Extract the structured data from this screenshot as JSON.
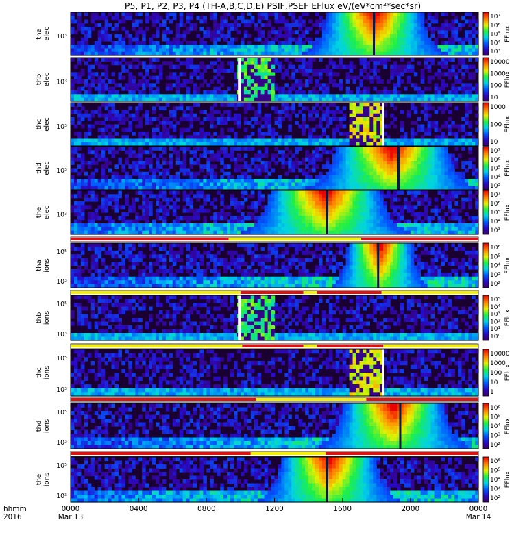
{
  "title": "P5, P1, P2, P3, P4 (TH-A,B,C,D,E) PSIF,PSEF EFlux eV/(eV*cm²*sec*sr)",
  "chart_data": {
    "type": "heatmap",
    "x_axis": {
      "label_line1": "hhmm",
      "label_line2": "2016",
      "tick_labels": [
        "0000",
        "0400",
        "0800",
        "1200",
        "1600",
        "2000",
        "0000"
      ],
      "date_labels": [
        {
          "at_hour": 0,
          "text": "Mar 13"
        },
        {
          "at_hour": 24,
          "text": "Mar 14"
        }
      ],
      "range_hours": [
        0,
        24
      ]
    },
    "panels": [
      {
        "name": "tha-elec",
        "ylabel": [
          "tha",
          "elec"
        ],
        "y_ticks": [
          "10³"
        ],
        "colorbar": {
          "label": "EFlux",
          "ticks": [
            "10³",
            "10⁴",
            "10⁵",
            "10⁶",
            "10⁷"
          ]
        },
        "peak_hour": 17.9,
        "peak_width": 3.4,
        "gap_hour": 17.85,
        "bar": null
      },
      {
        "name": "thb-elec",
        "ylabel": [
          "thb",
          "elec"
        ],
        "y_ticks": [
          "10³"
        ],
        "colorbar": {
          "label": "EFlux",
          "ticks": [
            "10",
            "100",
            "1000",
            "10000"
          ]
        },
        "burst": [
          9.9,
          12.0
        ],
        "gap_hour": 9.95,
        "bar": null
      },
      {
        "name": "thc-elec",
        "ylabel": [
          "thc",
          "elec"
        ],
        "y_ticks": [
          "10³"
        ],
        "colorbar": {
          "label": "EFlux",
          "ticks": [
            "10",
            "100",
            "1000"
          ]
        },
        "burst": [
          16.5,
          18.4
        ],
        "gap_hour": 18.4,
        "bar": null
      },
      {
        "name": "thd-elec",
        "ylabel": [
          "thd",
          "elec"
        ],
        "y_ticks": [
          "10³"
        ],
        "colorbar": {
          "label": "EFlux",
          "ticks": [
            "10³",
            "10⁴",
            "10⁵",
            "10⁶",
            "10⁷"
          ]
        },
        "peak_hour": 18.9,
        "peak_width": 4.0,
        "gap_hour": 19.3,
        "bar": null
      },
      {
        "name": "the-elec",
        "ylabel": [
          "the",
          "elec"
        ],
        "y_ticks": [
          "10³"
        ],
        "colorbar": {
          "label": "EFlux",
          "ticks": [
            "10³",
            "10⁴",
            "10⁵",
            "10⁶",
            "10⁷"
          ]
        },
        "peak_hour": 15.0,
        "peak_width": 4.0,
        "gap_hour": 15.1,
        "bar": [
          {
            "from": 0,
            "to": 9.3,
            "color": "red"
          },
          {
            "from": 9.3,
            "to": 17.1,
            "color": "yellow"
          },
          {
            "from": 17.1,
            "to": 24,
            "color": "red"
          }
        ]
      },
      {
        "name": "tha-ions",
        "ylabel": [
          "tha",
          "ions"
        ],
        "y_ticks": [
          "10³",
          "10⁵"
        ],
        "colorbar": {
          "label": "EFlux",
          "ticks": [
            "10²",
            "10³",
            "10⁴",
            "10⁵",
            "10⁶"
          ]
        },
        "peak_hour": 18.2,
        "peak_width": 2.3,
        "gap_hour": 18.1,
        "bar": [
          {
            "from": 0,
            "to": 10.0,
            "color": "yellow"
          },
          {
            "from": 10.0,
            "to": 13.7,
            "color": "red"
          },
          {
            "from": 13.7,
            "to": 14.5,
            "color": "yellow"
          },
          {
            "from": 14.5,
            "to": 18.3,
            "color": "red"
          },
          {
            "from": 18.3,
            "to": 24,
            "color": "yellow"
          }
        ]
      },
      {
        "name": "thb-ions",
        "ylabel": [
          "thb",
          "ions"
        ],
        "y_ticks": [
          "10³",
          "10⁵"
        ],
        "colorbar": {
          "label": "EFlux",
          "ticks": [
            "10⁰",
            "10¹",
            "10²",
            "10³",
            "10⁴",
            "10⁵"
          ]
        },
        "burst": [
          9.9,
          12.0
        ],
        "gap_hour": 9.95,
        "bar": [
          {
            "from": 0,
            "to": 10.1,
            "color": "yellow"
          },
          {
            "from": 10.1,
            "to": 13.7,
            "color": "red"
          },
          {
            "from": 13.7,
            "to": 14.5,
            "color": "yellow"
          },
          {
            "from": 14.5,
            "to": 18.4,
            "color": "red"
          },
          {
            "from": 18.4,
            "to": 24,
            "color": "yellow"
          }
        ]
      },
      {
        "name": "thc-ions",
        "ylabel": [
          "thc",
          "ions"
        ],
        "y_ticks": [
          "10³",
          "10⁵"
        ],
        "colorbar": {
          "label": "EFlux",
          "ticks": [
            "1",
            "10",
            "100",
            "1000",
            "10000"
          ]
        },
        "burst": [
          16.5,
          18.4
        ],
        "gap_hour": 18.4,
        "bar": [
          {
            "from": 0,
            "to": 10.9,
            "color": "red"
          },
          {
            "from": 10.9,
            "to": 17.4,
            "color": "yellow"
          },
          {
            "from": 17.4,
            "to": 24,
            "color": "red"
          }
        ]
      },
      {
        "name": "thd-ions",
        "ylabel": [
          "thd",
          "ions"
        ],
        "y_ticks": [
          "10³",
          "10⁵"
        ],
        "colorbar": {
          "label": "EFlux",
          "ticks": [
            "10²",
            "10³",
            "10⁴",
            "10⁵",
            "10⁶"
          ]
        },
        "peak_hour": 19.0,
        "peak_width": 3.6,
        "gap_hour": 19.4,
        "bar": [
          {
            "from": 0,
            "to": 10.6,
            "color": "red"
          },
          {
            "from": 10.6,
            "to": 15.0,
            "color": "yellow"
          },
          {
            "from": 15.0,
            "to": 24,
            "color": "red"
          }
        ]
      },
      {
        "name": "the-ions",
        "ylabel": [
          "the",
          "ions"
        ],
        "y_ticks": [
          "10³",
          "10⁵"
        ],
        "colorbar": {
          "label": "EFlux",
          "ticks": [
            "10²",
            "10³",
            "10⁴",
            "10⁵",
            "10⁶"
          ]
        },
        "peak_hour": 15.2,
        "peak_width": 3.4,
        "gap_hour": 15.1,
        "bar": null
      }
    ]
  }
}
